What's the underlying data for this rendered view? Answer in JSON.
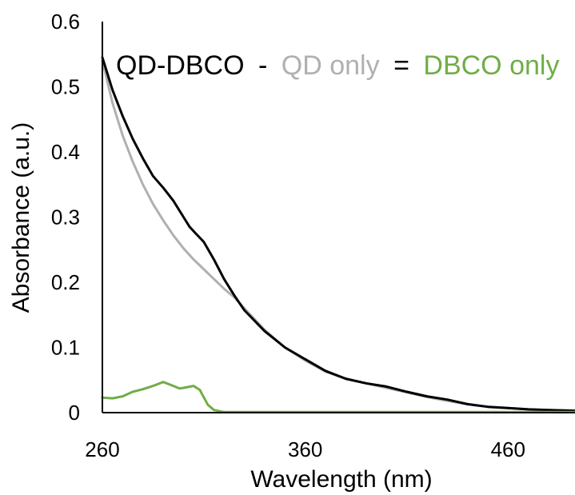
{
  "chart_data": {
    "type": "line",
    "xlabel": "Wavelength (nm)",
    "ylabel": "Absorbance (a.u.)",
    "xlim": [
      260,
      493
    ],
    "ylim": [
      0,
      0.6
    ],
    "x_ticks": [
      260,
      360,
      460
    ],
    "y_ticks": [
      0,
      0.1,
      0.2,
      0.3,
      0.4,
      0.5,
      0.6
    ],
    "y_tick_labels": [
      "0",
      "0.1",
      "0.2",
      "0.3",
      "0.4",
      "0.5",
      "0.6"
    ],
    "x_tick_labels": [
      "260",
      "360",
      "460"
    ],
    "grid": false,
    "legend_position": "top",
    "annotation": {
      "part1": "QD-DBCO",
      "op1": "-",
      "part2": "QD only",
      "op2": "=",
      "part3": "DBCO only"
    },
    "series": [
      {
        "name": "QD-DBCO",
        "color": "#000000",
        "x": [
          260,
          265,
          270,
          275,
          280,
          285,
          290,
          295,
          300,
          303,
          306,
          310,
          315,
          320,
          325,
          330,
          340,
          350,
          360,
          370,
          380,
          390,
          400,
          410,
          420,
          430,
          440,
          450,
          460,
          470,
          480,
          493
        ],
        "y": [
          0.545,
          0.495,
          0.455,
          0.42,
          0.39,
          0.363,
          0.345,
          0.325,
          0.3,
          0.285,
          0.275,
          0.262,
          0.235,
          0.205,
          0.18,
          0.157,
          0.125,
          0.1,
          0.082,
          0.064,
          0.052,
          0.045,
          0.04,
          0.032,
          0.025,
          0.02,
          0.013,
          0.009,
          0.007,
          0.005,
          0.004,
          0.003
        ]
      },
      {
        "name": "QD only",
        "color": "#b0b0b0",
        "x": [
          260,
          265,
          270,
          275,
          280,
          285,
          290,
          295,
          300,
          305,
          310,
          315,
          320,
          325,
          330,
          340,
          350,
          360,
          370,
          380,
          390,
          400,
          410,
          420,
          430,
          440,
          450,
          460,
          470,
          480,
          493
        ],
        "y": [
          0.54,
          0.475,
          0.425,
          0.385,
          0.35,
          0.32,
          0.295,
          0.272,
          0.252,
          0.235,
          0.22,
          0.205,
          0.19,
          0.177,
          0.16,
          0.127,
          0.1,
          0.08,
          0.063,
          0.052,
          0.045,
          0.038,
          0.031,
          0.024,
          0.018,
          0.013,
          0.009,
          0.007,
          0.005,
          0.004,
          0.003
        ]
      },
      {
        "name": "DBCO only",
        "color": "#70ad47",
        "x": [
          260,
          265,
          270,
          275,
          280,
          285,
          290,
          295,
          298,
          300,
          305,
          308,
          312,
          315,
          318,
          320,
          330,
          360,
          400,
          460,
          493
        ],
        "y": [
          0.023,
          0.022,
          0.025,
          0.032,
          0.036,
          0.041,
          0.047,
          0.041,
          0.037,
          0.038,
          0.041,
          0.035,
          0.012,
          0.004,
          0.002,
          0.001,
          0.001,
          0.001,
          0.001,
          0.001,
          0.001
        ]
      }
    ]
  }
}
